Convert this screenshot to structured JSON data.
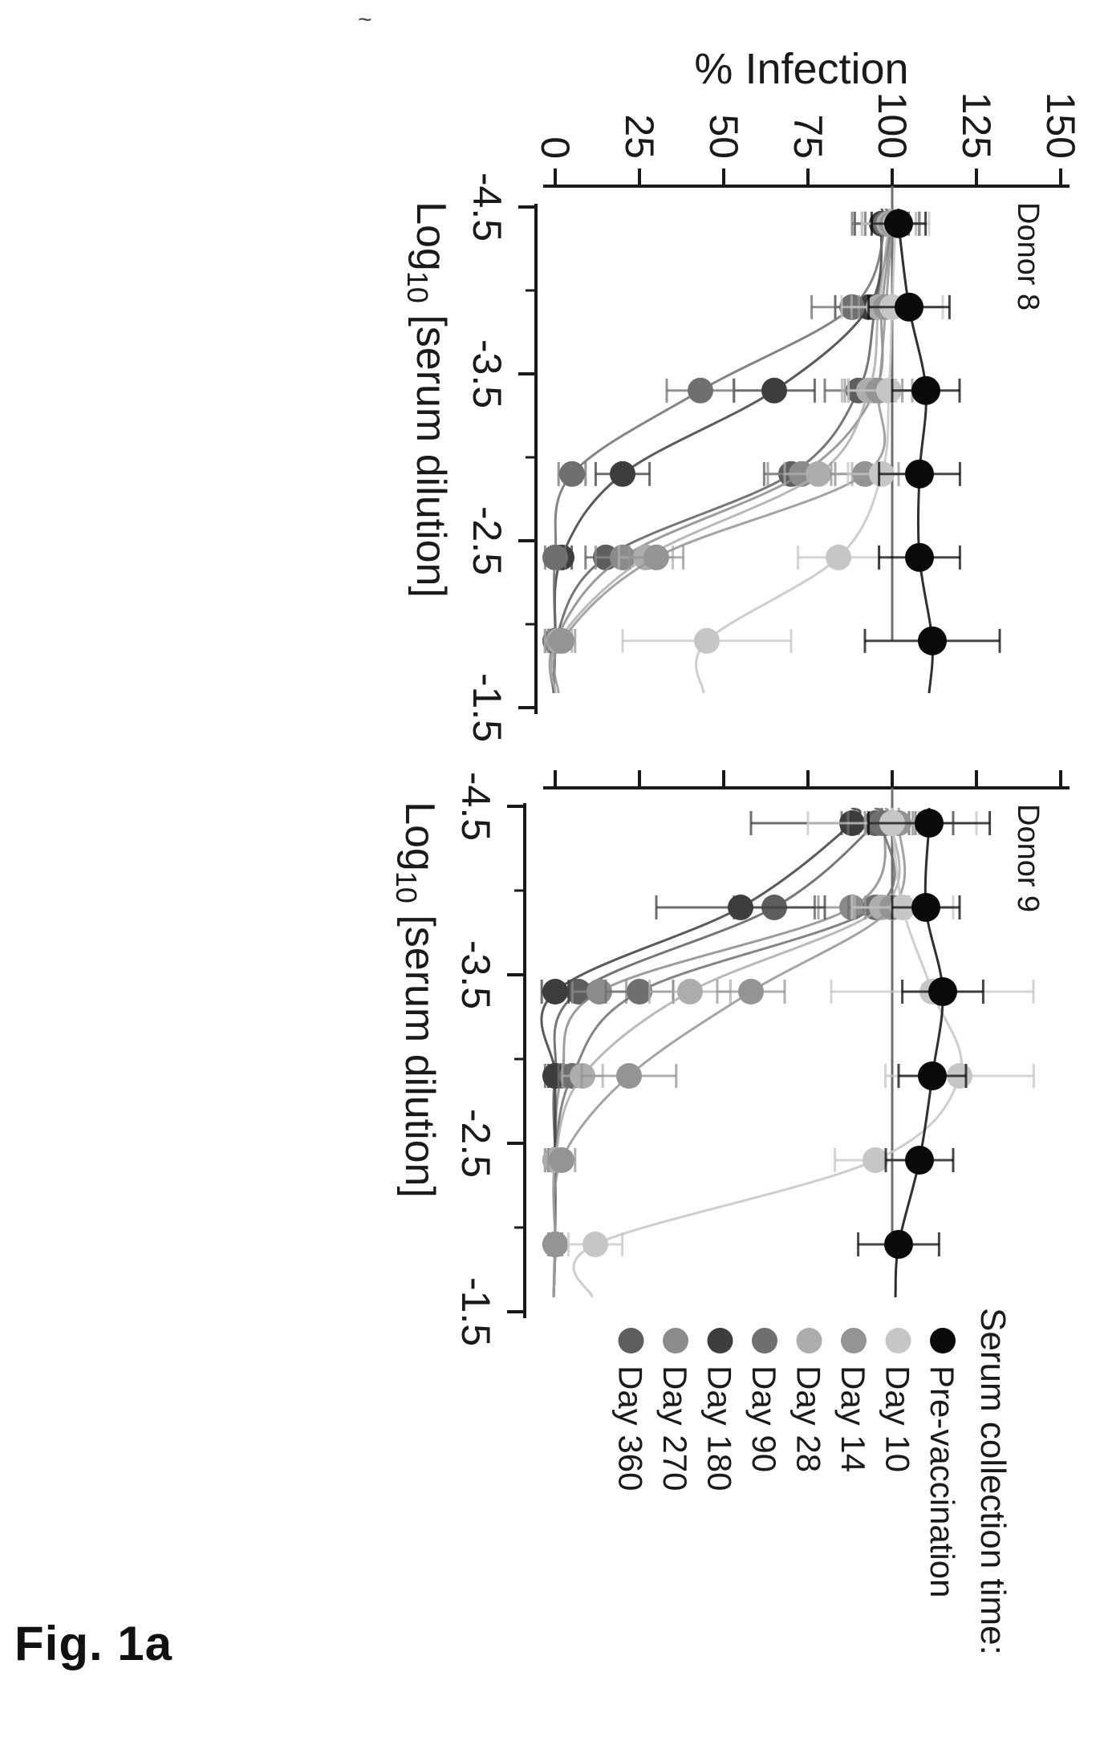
{
  "figure_label": "Fig. 1a",
  "stray_mark": "~",
  "y_axis": {
    "title": "% Infection",
    "tick_labels": [
      "0",
      "25",
      "50",
      "75",
      "100",
      "125",
      "150"
    ],
    "ticks": [
      0,
      25,
      50,
      75,
      100,
      125,
      150
    ],
    "range": [
      0,
      150
    ]
  },
  "x_axis": {
    "title_prefix": "Log",
    "title_sub": "10",
    "title_suffix": " [serum dilution]",
    "major_tick_labels": [
      "-4.5",
      "-3.5",
      "-2.5",
      "-1.5"
    ],
    "major_ticks": [
      -4.5,
      -3.5,
      -2.5,
      -1.5
    ],
    "minor_ticks": [
      -4.0,
      -3.0,
      -2.0
    ],
    "range": [
      -4.5,
      -1.5
    ]
  },
  "reference_line": 100,
  "legend": {
    "title": "Serum collection time:",
    "entries": [
      {
        "label": "Pre-vaccination",
        "color": "#0a0a0a"
      },
      {
        "label": "Day 10",
        "color": "#c6c6c6"
      },
      {
        "label": "Day 14",
        "color": "#949494"
      },
      {
        "label": "Day 28",
        "color": "#adadad"
      },
      {
        "label": "Day 90",
        "color": "#6f6f6f"
      },
      {
        "label": "Day 180",
        "color": "#3d3d3d"
      },
      {
        "label": "Day 270",
        "color": "#8b8b8b"
      },
      {
        "label": "Day 360",
        "color": "#5e5e5e"
      }
    ]
  },
  "chart_data": [
    {
      "type": "line",
      "title": "Donor 8",
      "xlabel": "Log10 [serum dilution]",
      "ylabel": "% Infection",
      "xlim": [
        -4.5,
        -1.5
      ],
      "ylim": [
        0,
        150
      ],
      "grid": false,
      "x": [
        -4.4,
        -3.9,
        -3.4,
        -2.9,
        -2.4,
        -1.9
      ],
      "series": [
        {
          "name": "Pre-vaccination",
          "color": "#0a0a0a",
          "values": [
            102,
            105,
            110,
            108,
            108,
            112
          ],
          "err": [
            8,
            12,
            10,
            12,
            12,
            20
          ]
        },
        {
          "name": "Day 10",
          "color": "#c6c6c6",
          "values": [
            101,
            100,
            99,
            97,
            84,
            45
          ],
          "err": [
            10,
            15,
            12,
            10,
            12,
            25
          ]
        },
        {
          "name": "Day 14",
          "color": "#949494",
          "values": [
            100,
            98,
            96,
            92,
            30,
            2
          ],
          "err": [
            8,
            8,
            10,
            10,
            8,
            4
          ]
        },
        {
          "name": "Day 28",
          "color": "#adadad",
          "values": [
            99,
            96,
            93,
            78,
            27,
            1
          ],
          "err": [
            8,
            8,
            8,
            10,
            8,
            4
          ]
        },
        {
          "name": "Day 90",
          "color": "#6f6f6f",
          "values": [
            98,
            88,
            43,
            5,
            0,
            0
          ],
          "err": [
            10,
            12,
            10,
            4,
            3,
            2
          ]
        },
        {
          "name": "Day 180",
          "color": "#3d3d3d",
          "values": [
            97,
            93,
            65,
            20,
            2,
            0
          ],
          "err": [
            8,
            10,
            12,
            8,
            3,
            2
          ]
        },
        {
          "name": "Day 270",
          "color": "#8b8b8b",
          "values": [
            100,
            97,
            95,
            73,
            20,
            0
          ],
          "err": [
            8,
            8,
            8,
            10,
            8,
            3
          ]
        },
        {
          "name": "Day 360",
          "color": "#5e5e5e",
          "values": [
            100,
            95,
            90,
            70,
            15,
            0
          ],
          "err": [
            8,
            8,
            10,
            8,
            6,
            3
          ]
        }
      ]
    },
    {
      "type": "line",
      "title": "Donor 9",
      "xlabel": "Log10 [serum dilution]",
      "ylabel": "% Infection",
      "xlim": [
        -4.5,
        -1.5
      ],
      "ylim": [
        0,
        150
      ],
      "grid": false,
      "x": [
        -4.4,
        -3.9,
        -3.4,
        -2.9,
        -2.4,
        -1.9
      ],
      "series": [
        {
          "name": "Pre-vaccination",
          "color": "#0a0a0a",
          "values": [
            111,
            110,
            115,
            112,
            108,
            102
          ],
          "err": [
            18,
            10,
            12,
            10,
            10,
            12
          ]
        },
        {
          "name": "Day 10",
          "color": "#c6c6c6",
          "values": [
            100,
            103,
            112,
            120,
            95,
            12
          ],
          "err": [
            25,
            15,
            30,
            22,
            12,
            8
          ]
        },
        {
          "name": "Day 14",
          "color": "#949494",
          "values": [
            102,
            100,
            58,
            22,
            2,
            0
          ],
          "err": [
            10,
            8,
            10,
            14,
            4,
            2
          ]
        },
        {
          "name": "Day 28",
          "color": "#adadad",
          "values": [
            100,
            97,
            40,
            8,
            0,
            0
          ],
          "err": [
            8,
            8,
            12,
            6,
            3,
            2
          ]
        },
        {
          "name": "Day 90",
          "color": "#6f6f6f",
          "values": [
            97,
            95,
            25,
            5,
            0,
            0
          ],
          "err": [
            10,
            8,
            10,
            4,
            3,
            2
          ]
        },
        {
          "name": "Day 180",
          "color": "#3d3d3d",
          "values": [
            88,
            55,
            0,
            0,
            0,
            0
          ],
          "err": [
            30,
            25,
            4,
            2,
            2,
            2
          ]
        },
        {
          "name": "Day 270",
          "color": "#8b8b8b",
          "values": [
            98,
            88,
            13,
            2,
            0,
            0
          ],
          "err": [
            8,
            10,
            8,
            4,
            3,
            2
          ]
        },
        {
          "name": "Day 360",
          "color": "#5e5e5e",
          "values": [
            95,
            65,
            7,
            0,
            0,
            0
          ],
          "err": [
            10,
            12,
            6,
            3,
            2,
            2
          ]
        }
      ]
    }
  ]
}
